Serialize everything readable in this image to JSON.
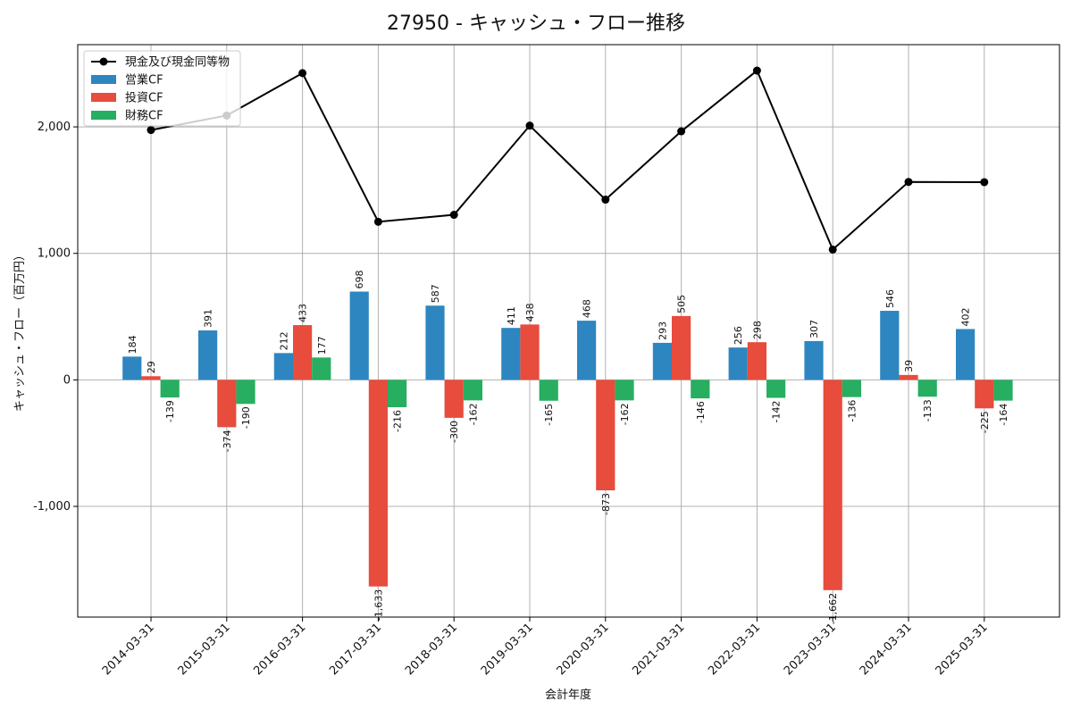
{
  "chart_data": {
    "type": "bar",
    "title": "27950 - キャッシュ・フロー推移",
    "xlabel": "会計年度",
    "ylabel": "キャッシュ・フロー（百万円）",
    "categories": [
      "2014-03-31",
      "2015-03-31",
      "2016-03-31",
      "2017-03-31",
      "2018-03-31",
      "2019-03-31",
      "2020-03-31",
      "2021-03-31",
      "2022-03-31",
      "2023-03-31",
      "2024-03-31",
      "2025-03-31"
    ],
    "ylim": [
      -1875,
      2650
    ],
    "yticks": [
      -1000,
      0,
      1000,
      2000
    ],
    "ytick_labels": [
      "-1,000",
      "0",
      "1,000",
      "2,000"
    ],
    "grid": true,
    "legend_position": "top-left",
    "series": [
      {
        "name": "営業CF",
        "kind": "bar",
        "color": "#2e86c1",
        "values": [
          184,
          391,
          212,
          698,
          587,
          411,
          468,
          293,
          256,
          307,
          546,
          402
        ],
        "labels": [
          "184",
          "391",
          "212",
          "698",
          "587",
          "411",
          "468",
          "293",
          "256",
          "307",
          "546",
          "402"
        ]
      },
      {
        "name": "投資CF",
        "kind": "bar",
        "color": "#e74c3c",
        "values": [
          29,
          -374,
          433,
          -1633,
          -300,
          438,
          -873,
          505,
          298,
          -1662,
          39,
          -225
        ],
        "labels": [
          "29",
          "-374",
          "433",
          "-1,633",
          "-300",
          "438",
          "-873",
          "505",
          "298",
          "-1,662",
          "39",
          "-225"
        ]
      },
      {
        "name": "財務CF",
        "kind": "bar",
        "color": "#27ae60",
        "values": [
          -139,
          -190,
          177,
          -216,
          -162,
          -165,
          -162,
          -146,
          -142,
          -136,
          -133,
          -164
        ],
        "labels": [
          "-139",
          "-190",
          "177",
          "-216",
          "-162",
          "-165",
          "-162",
          "-146",
          "-142",
          "-136",
          "-133",
          "-164"
        ]
      },
      {
        "name": "現金及び現金同等物",
        "kind": "line",
        "color": "#000000",
        "values": [
          1975,
          2090,
          2425,
          1250,
          1305,
          2010,
          1425,
          1965,
          2445,
          1030,
          1565,
          1563
        ]
      }
    ]
  }
}
